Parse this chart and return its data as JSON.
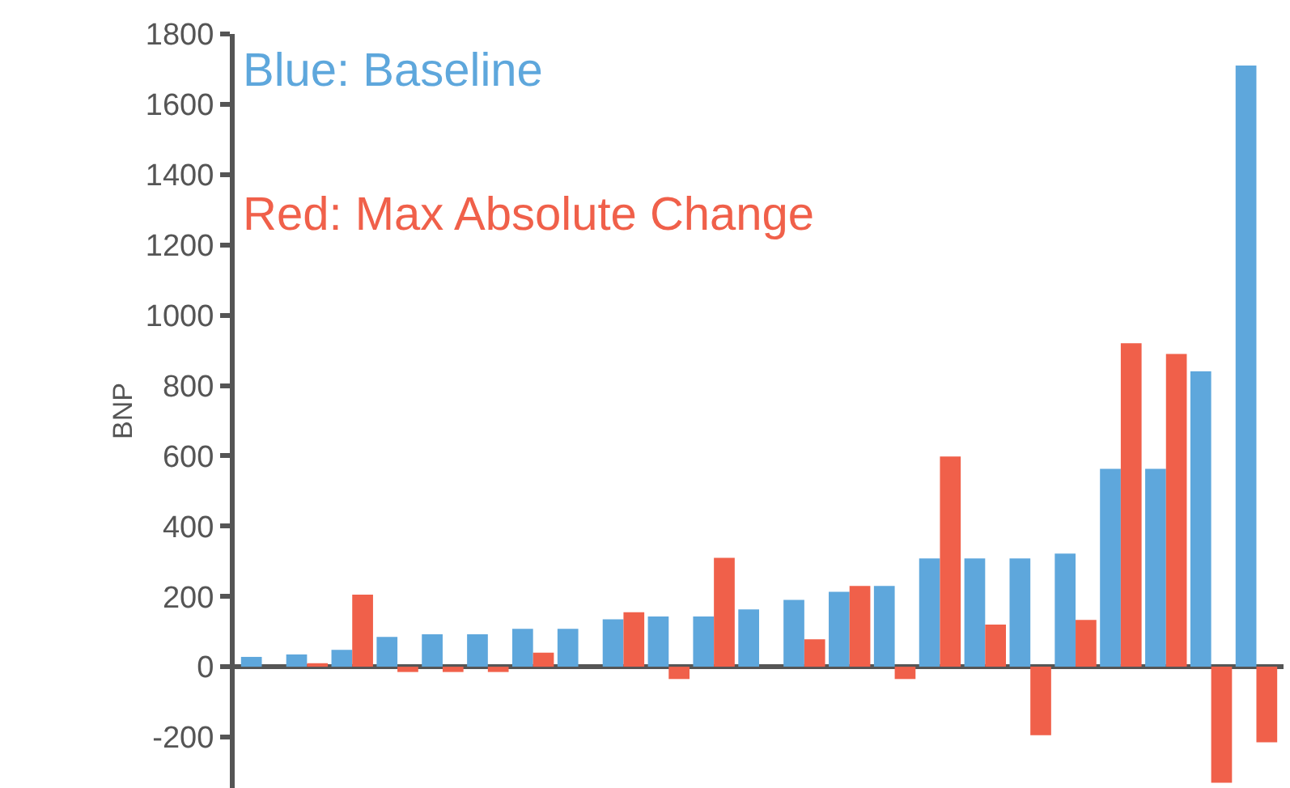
{
  "chart_data": {
    "type": "bar",
    "ylabel": "BNP",
    "categories": [
      null,
      null,
      null,
      null,
      null,
      null,
      null,
      null,
      null,
      null,
      null,
      null,
      null,
      null,
      null,
      null,
      null,
      null,
      null,
      null,
      null,
      null,
      null
    ],
    "series": [
      {
        "color": "#5ea7dc",
        "values": [
          28,
          35,
          48,
          85,
          92,
          92,
          108,
          108,
          135,
          143,
          143,
          163,
          190,
          213,
          230,
          308,
          308,
          308,
          322,
          563,
          563,
          840,
          1710
        ]
      },
      {
        "color": "#f0604a",
        "values": [
          null,
          10,
          205,
          -15,
          -15,
          -15,
          40,
          null,
          155,
          -35,
          310,
          null,
          78,
          230,
          -35,
          598,
          120,
          -195,
          133,
          920,
          890,
          -330,
          -215
        ]
      }
    ],
    "annotations": [
      "Blue: Baseline",
      "Red: Max Absolute Change"
    ],
    "ylim": [
      -345,
      1800
    ],
    "yticks": [
      -200,
      0,
      200,
      400,
      600,
      800,
      1000,
      1200,
      1400,
      1600,
      1800
    ],
    "legend": false
  }
}
